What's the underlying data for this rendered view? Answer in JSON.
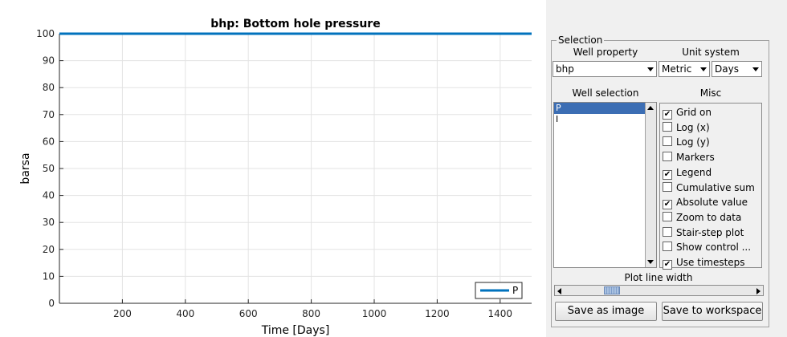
{
  "chart_data": {
    "type": "line",
    "title": "bhp: Bottom hole pressure",
    "xlabel": "Time [Days]",
    "ylabel": "barsa",
    "xlim": [
      0,
      1500
    ],
    "ylim": [
      0,
      100
    ],
    "xticks": [
      200,
      400,
      600,
      800,
      1000,
      1200,
      1400
    ],
    "yticks": [
      0,
      10,
      20,
      30,
      40,
      50,
      60,
      70,
      80,
      90,
      100
    ],
    "grid": true,
    "legend_position": "bottom-right",
    "series": [
      {
        "name": "P",
        "color": "#0072bd",
        "x": [
          0,
          1500
        ],
        "y": [
          100,
          100
        ]
      }
    ]
  },
  "panel": {
    "group_title": "Selection",
    "well_property_label": "Well property",
    "well_property_value": "bhp",
    "unit_system_label": "Unit system",
    "unit_metric_value": "Metric",
    "unit_time_value": "Days",
    "well_selection_label": "Well selection",
    "wells": [
      "P",
      "I"
    ],
    "selected_well": "P",
    "misc_label": "Misc",
    "misc_options": [
      {
        "label": "Grid on",
        "checked": true
      },
      {
        "label": "Log (x)",
        "checked": false
      },
      {
        "label": "Log (y)",
        "checked": false
      },
      {
        "label": "Markers",
        "checked": false
      },
      {
        "label": "Legend",
        "checked": true
      },
      {
        "label": "Cumulative sum",
        "checked": false
      },
      {
        "label": "Absolute value",
        "checked": true
      },
      {
        "label": "Zoom to data",
        "checked": false
      },
      {
        "label": "Stair-step plot",
        "checked": false
      },
      {
        "label": "Show control ...",
        "checked": false
      },
      {
        "label": "Use timesteps",
        "checked": true
      }
    ],
    "plot_line_width_label": "Plot line width",
    "plot_line_width_fraction": 0.09,
    "save_image_label": "Save as image",
    "save_workspace_label": "Save to workspace"
  }
}
